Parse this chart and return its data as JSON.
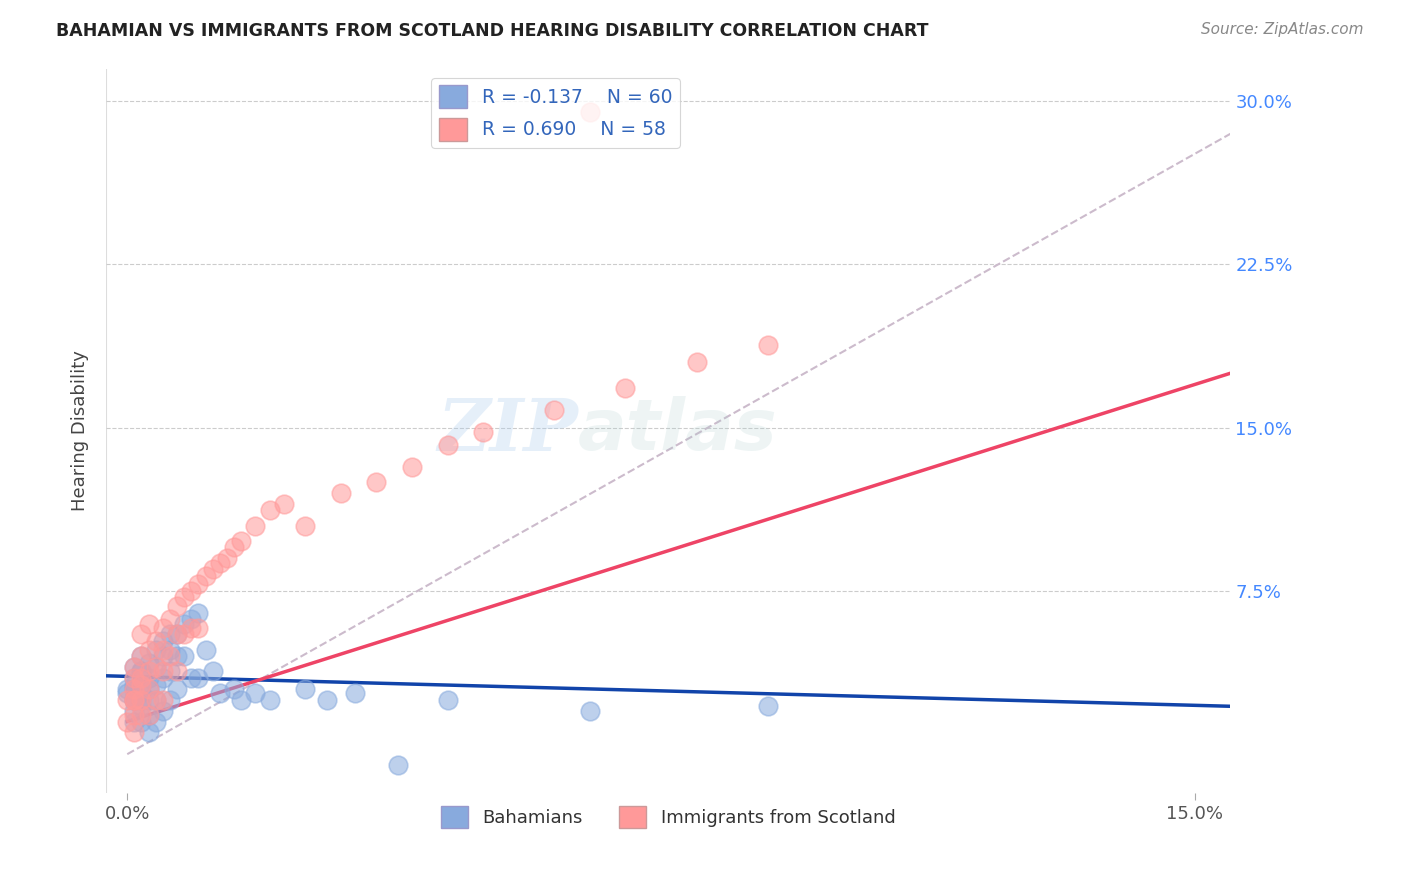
{
  "title": "BAHAMIAN VS IMMIGRANTS FROM SCOTLAND HEARING DISABILITY CORRELATION CHART",
  "source": "Source: ZipAtlas.com",
  "ylabel": "Hearing Disability",
  "ytick_vals": [
    0.075,
    0.15,
    0.225,
    0.3
  ],
  "ytick_labels": [
    "7.5%",
    "15.0%",
    "22.5%",
    "30.0%"
  ],
  "xmin": -0.003,
  "xmax": 0.155,
  "ymin": -0.018,
  "ymax": 0.315,
  "legend_r1": "R = -0.137",
  "legend_n1": "N = 60",
  "legend_r2": "R = 0.690",
  "legend_n2": "N = 58",
  "color_blue": "#88AADD",
  "color_pink": "#FF9999",
  "color_line_blue": "#1144AA",
  "color_line_pink": "#EE4466",
  "color_line_dashed": "#CCBBCC",
  "watermark_zip": "ZIP",
  "watermark_atlas": "atlas",
  "legend_label1": "Bahamians",
  "legend_label2": "Immigrants from Scotland",
  "bah_x": [
    0.0,
    0.0,
    0.001,
    0.001,
    0.001,
    0.001,
    0.001,
    0.001,
    0.001,
    0.001,
    0.002,
    0.002,
    0.002,
    0.002,
    0.002,
    0.002,
    0.002,
    0.002,
    0.003,
    0.003,
    0.003,
    0.003,
    0.003,
    0.003,
    0.004,
    0.004,
    0.004,
    0.004,
    0.004,
    0.005,
    0.005,
    0.005,
    0.005,
    0.006,
    0.006,
    0.006,
    0.006,
    0.007,
    0.007,
    0.007,
    0.008,
    0.008,
    0.009,
    0.009,
    0.01,
    0.01,
    0.011,
    0.012,
    0.013,
    0.015,
    0.016,
    0.018,
    0.02,
    0.025,
    0.028,
    0.032,
    0.038,
    0.045,
    0.065,
    0.09
  ],
  "bah_y": [
    0.03,
    0.028,
    0.035,
    0.032,
    0.025,
    0.02,
    0.04,
    0.03,
    0.025,
    0.015,
    0.038,
    0.032,
    0.028,
    0.022,
    0.045,
    0.038,
    0.025,
    0.015,
    0.042,
    0.035,
    0.03,
    0.025,
    0.018,
    0.01,
    0.048,
    0.04,
    0.032,
    0.025,
    0.015,
    0.052,
    0.045,
    0.035,
    0.02,
    0.055,
    0.048,
    0.038,
    0.025,
    0.055,
    0.045,
    0.03,
    0.06,
    0.045,
    0.062,
    0.035,
    0.065,
    0.035,
    0.048,
    0.038,
    0.028,
    0.03,
    0.025,
    0.028,
    0.025,
    0.03,
    0.025,
    0.028,
    -0.005,
    0.025,
    0.02,
    0.022
  ],
  "sco_x": [
    0.0,
    0.0,
    0.001,
    0.001,
    0.001,
    0.001,
    0.001,
    0.001,
    0.001,
    0.002,
    0.002,
    0.002,
    0.002,
    0.002,
    0.002,
    0.003,
    0.003,
    0.003,
    0.003,
    0.003,
    0.004,
    0.004,
    0.004,
    0.005,
    0.005,
    0.005,
    0.005,
    0.006,
    0.006,
    0.007,
    0.007,
    0.007,
    0.008,
    0.008,
    0.009,
    0.009,
    0.01,
    0.01,
    0.011,
    0.012,
    0.013,
    0.014,
    0.015,
    0.016,
    0.018,
    0.02,
    0.022,
    0.025,
    0.03,
    0.035,
    0.04,
    0.045,
    0.05,
    0.06,
    0.07,
    0.08,
    0.09,
    0.065
  ],
  "sco_y": [
    0.025,
    0.015,
    0.03,
    0.025,
    0.018,
    0.04,
    0.035,
    0.025,
    0.01,
    0.035,
    0.045,
    0.032,
    0.025,
    0.018,
    0.055,
    0.048,
    0.038,
    0.03,
    0.018,
    0.06,
    0.052,
    0.04,
    0.025,
    0.058,
    0.048,
    0.038,
    0.025,
    0.062,
    0.045,
    0.068,
    0.055,
    0.038,
    0.072,
    0.055,
    0.075,
    0.058,
    0.078,
    0.058,
    0.082,
    0.085,
    0.088,
    0.09,
    0.095,
    0.098,
    0.105,
    0.112,
    0.115,
    0.105,
    0.12,
    0.125,
    0.132,
    0.142,
    0.148,
    0.158,
    0.168,
    0.18,
    0.188,
    0.295
  ],
  "bah_line_x0": -0.003,
  "bah_line_x1": 0.155,
  "bah_line_y0": 0.036,
  "bah_line_y1": 0.022,
  "sco_line_x0": 0.0,
  "sco_line_x1": 0.155,
  "sco_line_y0": 0.015,
  "sco_line_y1": 0.175,
  "dash_line_x0": 0.0,
  "dash_line_x1": 0.155,
  "dash_line_y0": 0.0,
  "dash_line_y1": 0.285
}
